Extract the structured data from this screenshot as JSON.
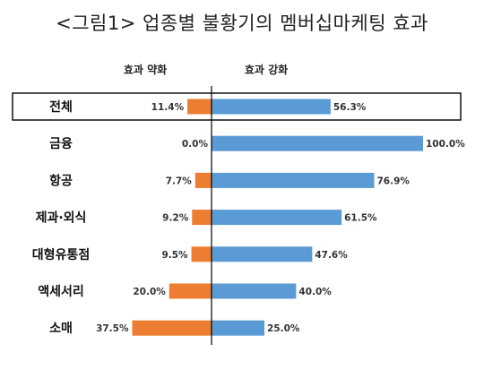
{
  "title": "<그림1> 업종별 불황기의 멤버십마케팅 효과",
  "chart_data": {
    "type": "bar",
    "orientation": "horizontal-diverging",
    "categories": [
      "전체",
      "금융",
      "항공",
      "제과·외식",
      "대형유통점",
      "액세서리",
      "소매"
    ],
    "series": [
      {
        "name": "효과 약화",
        "values": [
          11.4,
          0.0,
          7.7,
          9.2,
          9.5,
          20.0,
          37.5
        ],
        "color": "#ED7D31",
        "direction": "left"
      },
      {
        "name": "효과 강화",
        "values": [
          56.3,
          100.0,
          76.9,
          61.5,
          47.6,
          40.0,
          25.0
        ],
        "color": "#5B9BD5",
        "direction": "right"
      }
    ],
    "value_labels_left": [
      "11.4%",
      "0.0%",
      "7.7%",
      "9.2%",
      "9.5%",
      "20.0%",
      "37.5%"
    ],
    "value_labels_right": [
      "56.3%",
      "100.0%",
      "76.9%",
      "61.5%",
      "47.6%",
      "40.0%",
      "25.0%"
    ],
    "highlighted_category": "전체",
    "grid": false
  }
}
